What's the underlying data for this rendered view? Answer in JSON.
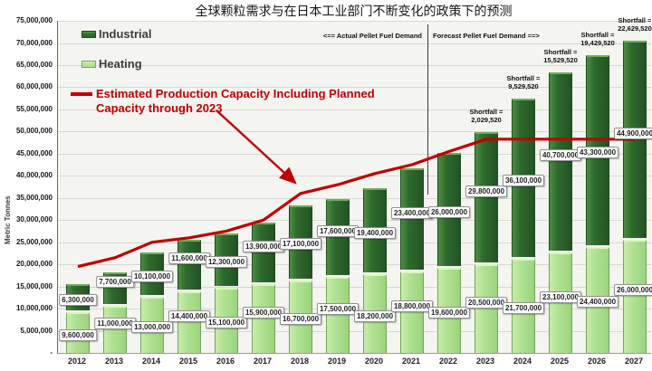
{
  "title": "全球颗粒需求与在日本工业部门不断变化的政策下的预测",
  "axis": {
    "ylabel": "Metric Tonnes",
    "zero_label": "-"
  },
  "legend": {
    "industrial": "Industrial",
    "heating": "Heating",
    "capacity_line1": "Estimated Production Capacity Including Planned",
    "capacity_line2": "Capacity through 2023"
  },
  "annotations": {
    "actual": "<== Actual Pellet Fuel Demand",
    "forecast": "Forecast Pellet Fuel Demand ==>",
    "shortfall_prefix": "Shortfall ="
  },
  "colors": {
    "industrial": "#2e6b2e",
    "heating": "#b2e294",
    "capacity_line": "#c00000",
    "grid": "#d6d6d2",
    "plot_bg": "#f4f4f1"
  },
  "chart_data": {
    "type": "bar",
    "stacked": true,
    "title": "全球颗粒需求与在日本工业部门不断变化的政策下的预测",
    "xlabel": "",
    "ylabel": "Metric Tonnes",
    "ylim": [
      0,
      75000000
    ],
    "ystep": 5000000,
    "grid": true,
    "legend_position": "top-left",
    "categories": [
      "2012",
      "2013",
      "2014",
      "2015",
      "2016",
      "2017",
      "2018",
      "2019",
      "2020",
      "2021",
      "2022",
      "2023",
      "2024",
      "2025",
      "2026",
      "2027"
    ],
    "series": [
      {
        "name": "Heating",
        "type": "bar",
        "color": "#b2e294",
        "values": [
          9600000,
          11000000,
          13000000,
          14400000,
          15100000,
          15900000,
          16700000,
          17500000,
          18200000,
          18800000,
          19600000,
          20500000,
          21700000,
          23100000,
          24400000,
          26000000
        ]
      },
      {
        "name": "Industrial",
        "type": "bar",
        "color": "#2e6b2e",
        "values": [
          6300000,
          7700000,
          10100000,
          11600000,
          12300000,
          13900000,
          17100000,
          17600000,
          19400000,
          23400000,
          26000000,
          29800000,
          36100000,
          40700000,
          43300000,
          44900000
        ]
      },
      {
        "name": "Estimated Production Capacity Including Planned Capacity through 2023",
        "type": "line",
        "color": "#c00000",
        "values": [
          19500000,
          21500000,
          25000000,
          26000000,
          27500000,
          30000000,
          36000000,
          38000000,
          40500000,
          42500000,
          45500000,
          48270480,
          48270480,
          48270480,
          48270480,
          48270480
        ]
      }
    ],
    "shortfalls": [
      {
        "year": "2023",
        "value": 2029520
      },
      {
        "year": "2024",
        "value": 9529520
      },
      {
        "year": "2025",
        "value": 15529520
      },
      {
        "year": "2026",
        "value": 19429520
      },
      {
        "year": "2027",
        "value": 22629520
      }
    ],
    "divider_between": [
      "2021",
      "2022"
    ]
  }
}
